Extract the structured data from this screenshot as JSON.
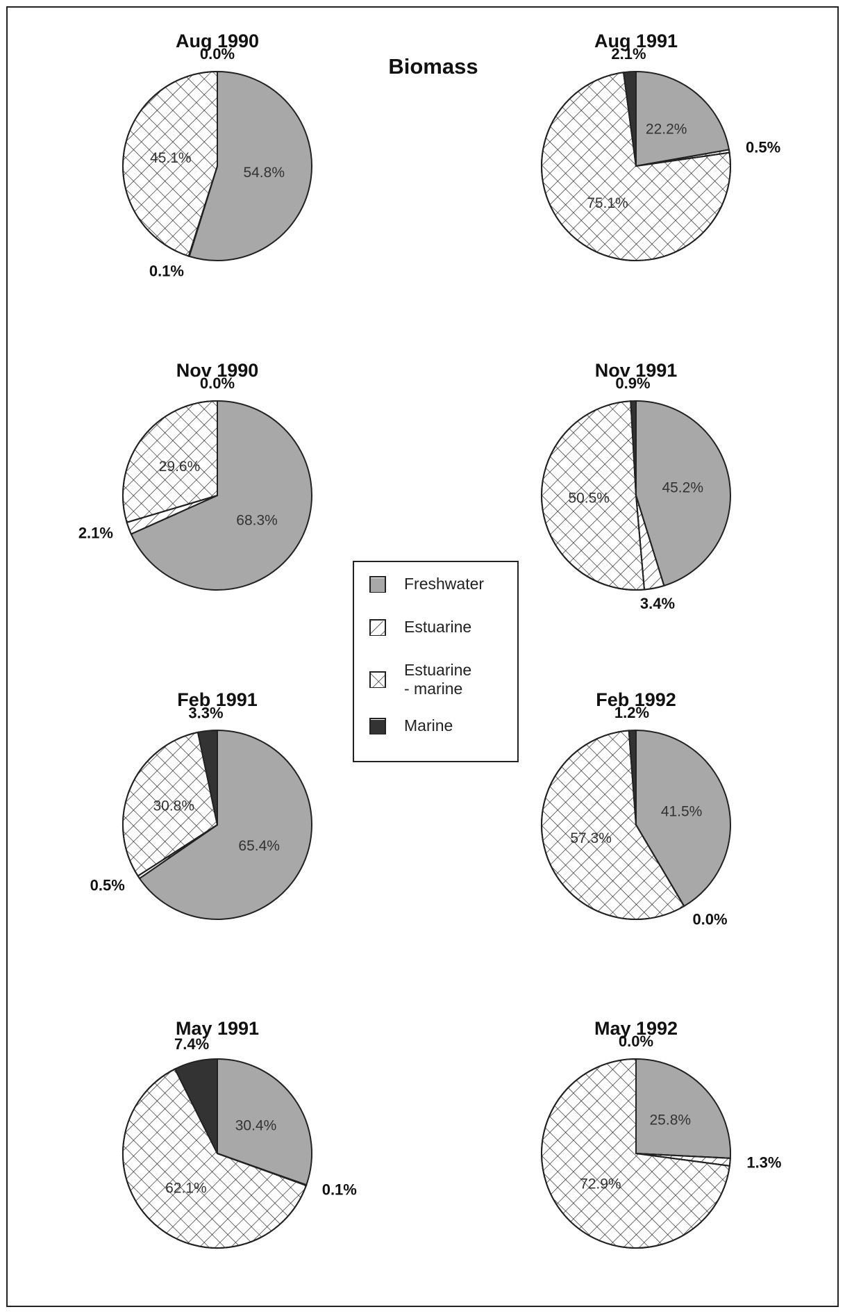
{
  "title": "Biomass",
  "categories": [
    "Freshwater",
    "Estuarine",
    "Estuarine - marine",
    "Marine"
  ],
  "colors": [
    "#a8a8a8",
    "#ffffff",
    "#ffffff",
    "#333333"
  ],
  "patterns": [
    null,
    "hatch",
    "crosshatch",
    null
  ],
  "chart_data": [
    {
      "type": "pie",
      "title": "Aug 1990",
      "values": [
        54.8,
        0.1,
        45.1,
        0.0
      ],
      "value_labels": [
        "54.8%",
        "0.1%",
        "45.1%",
        "0.0%"
      ]
    },
    {
      "type": "pie",
      "title": "Aug 1991",
      "values": [
        22.2,
        0.5,
        75.1,
        2.1
      ],
      "value_labels": [
        "22.2%",
        "0.5%",
        "75.1%",
        "2.1%"
      ]
    },
    {
      "type": "pie",
      "title": "Nov 1990",
      "values": [
        68.3,
        2.1,
        29.6,
        0.0
      ],
      "value_labels": [
        "68.3%",
        "2.1%",
        "29.6%",
        "0.0%"
      ]
    },
    {
      "type": "pie",
      "title": "Nov 1991",
      "values": [
        45.2,
        3.4,
        50.5,
        0.9
      ],
      "value_labels": [
        "45.2%",
        "3.4%",
        "50.5%",
        "0.9%"
      ]
    },
    {
      "type": "pie",
      "title": "Feb 1991",
      "values": [
        65.4,
        0.5,
        30.8,
        3.3
      ],
      "value_labels": [
        "65.4%",
        "0.5%",
        "30.8%",
        "3.3%"
      ]
    },
    {
      "type": "pie",
      "title": "Feb 1992",
      "values": [
        41.5,
        0.0,
        57.3,
        1.2
      ],
      "value_labels": [
        "41.5%",
        "0.0%",
        "57.3%",
        "1.2%"
      ]
    },
    {
      "type": "pie",
      "title": "May 1991",
      "values": [
        30.4,
        0.1,
        62.1,
        7.4
      ],
      "value_labels": [
        "30.4%",
        "0.1%",
        "62.1%",
        "7.4%"
      ]
    },
    {
      "type": "pie",
      "title": "May 1992",
      "values": [
        25.8,
        1.3,
        72.9,
        0.0
      ],
      "value_labels": [
        "25.8%",
        "1.3%",
        "72.9%",
        "0.0%"
      ]
    }
  ]
}
